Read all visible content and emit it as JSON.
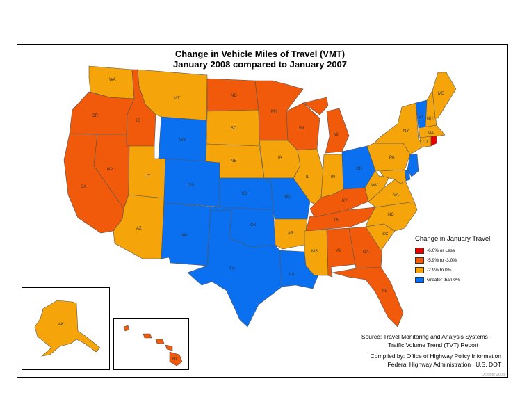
{
  "title": {
    "line1": "Change in Vehicle Miles of Travel (VMT)",
    "line2": "January 2008 compared to January 2007"
  },
  "legend": {
    "title": "Change in January Travel",
    "items": [
      {
        "label": "-6.0% or Less",
        "color": "#e60000"
      },
      {
        "label": "-5.9% to -3.0%",
        "color": "#f05a0a"
      },
      {
        "label": "-2.9% to 0%",
        "color": "#f5a50a"
      },
      {
        "label": "Greater than 0%",
        "color": "#0a70f0"
      }
    ]
  },
  "source": {
    "line1": "Source: Travel Monitoring and Analysis Systems -",
    "line2": "Traffic Volume Trend (TVT) Report",
    "line3": "Compiled by: Office of Highway Policy Information",
    "line4": "Federal Highway Administration , U.S. DOT"
  },
  "date_stamp": "October 2008",
  "states": [
    {
      "abbr": "WA",
      "category": 2
    },
    {
      "abbr": "OR",
      "category": 1
    },
    {
      "abbr": "CA",
      "category": 1
    },
    {
      "abbr": "ID",
      "category": 1
    },
    {
      "abbr": "NV",
      "category": 1
    },
    {
      "abbr": "MT",
      "category": 2
    },
    {
      "abbr": "WY",
      "category": 3
    },
    {
      "abbr": "UT",
      "category": 2
    },
    {
      "abbr": "AZ",
      "category": 2
    },
    {
      "abbr": "CO",
      "category": 3
    },
    {
      "abbr": "NM",
      "category": 3
    },
    {
      "abbr": "ND",
      "category": 1
    },
    {
      "abbr": "SD",
      "category": 2
    },
    {
      "abbr": "NE",
      "category": 2
    },
    {
      "abbr": "KS",
      "category": 3
    },
    {
      "abbr": "OK",
      "category": 3
    },
    {
      "abbr": "TX",
      "category": 3
    },
    {
      "abbr": "MN",
      "category": 1
    },
    {
      "abbr": "IA",
      "category": 2
    },
    {
      "abbr": "MO",
      "category": 3
    },
    {
      "abbr": "AR",
      "category": 2
    },
    {
      "abbr": "LA",
      "category": 3
    },
    {
      "abbr": "WI",
      "category": 1
    },
    {
      "abbr": "IL",
      "category": 2
    },
    {
      "abbr": "MI",
      "category": 1
    },
    {
      "abbr": "IN",
      "category": 2
    },
    {
      "abbr": "OH",
      "category": 3
    },
    {
      "abbr": "KY",
      "category": 1
    },
    {
      "abbr": "TN",
      "category": 1
    },
    {
      "abbr": "MS",
      "category": 2
    },
    {
      "abbr": "AL",
      "category": 1
    },
    {
      "abbr": "GA",
      "category": 1
    },
    {
      "abbr": "FL",
      "category": 1
    },
    {
      "abbr": "SC",
      "category": 2
    },
    {
      "abbr": "NC",
      "category": 2
    },
    {
      "abbr": "VA",
      "category": 2
    },
    {
      "abbr": "WV",
      "category": 2
    },
    {
      "abbr": "PA",
      "category": 2
    },
    {
      "abbr": "NY",
      "category": 2
    },
    {
      "abbr": "VT",
      "category": 3
    },
    {
      "abbr": "NH",
      "category": 2
    },
    {
      "abbr": "ME",
      "category": 2
    },
    {
      "abbr": "MA",
      "category": 2
    },
    {
      "abbr": "CT",
      "category": 2
    },
    {
      "abbr": "RI",
      "category": 0
    },
    {
      "abbr": "NJ",
      "category": 3
    },
    {
      "abbr": "DE",
      "category": 3
    },
    {
      "abbr": "MD",
      "category": 2
    },
    {
      "abbr": "AK",
      "category": 2
    },
    {
      "abbr": "HI",
      "category": 1
    }
  ]
}
